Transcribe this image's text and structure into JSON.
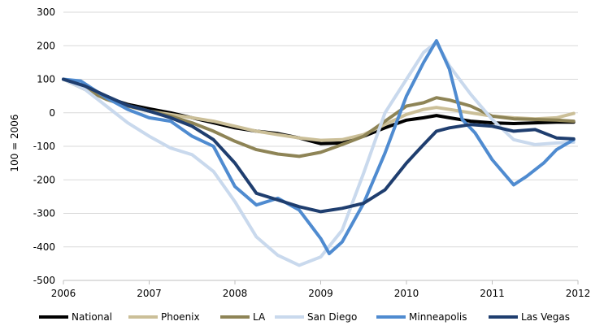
{
  "chart_data": {
    "type": "line",
    "title": "",
    "xlabel": "",
    "ylabel": "100 = 2006",
    "xlim": [
      2006,
      2012
    ],
    "ylim": [
      -500,
      300
    ],
    "x_ticks": [
      "2006",
      "2007",
      "2008",
      "2009",
      "2010",
      "2011",
      "2012"
    ],
    "y_ticks": [
      "300",
      "200",
      "100",
      "0",
      "-100",
      "-200",
      "-300",
      "-400",
      "-500"
    ],
    "grid": "horizontal",
    "legend_position": "bottom",
    "series": [
      {
        "name": "National",
        "color": "#000000",
        "points": [
          [
            2006.0,
            100
          ],
          [
            2006.25,
            75
          ],
          [
            2006.5,
            45
          ],
          [
            2006.75,
            25
          ],
          [
            2007.0,
            12
          ],
          [
            2007.25,
            0
          ],
          [
            2007.5,
            -15
          ],
          [
            2007.75,
            -30
          ],
          [
            2008.0,
            -45
          ],
          [
            2008.25,
            -55
          ],
          [
            2008.5,
            -62
          ],
          [
            2008.75,
            -75
          ],
          [
            2009.0,
            -92
          ],
          [
            2009.25,
            -90
          ],
          [
            2009.5,
            -70
          ],
          [
            2009.75,
            -45
          ],
          [
            2010.0,
            -22
          ],
          [
            2010.2,
            -15
          ],
          [
            2010.35,
            -8
          ],
          [
            2010.5,
            -15
          ],
          [
            2010.75,
            -25
          ],
          [
            2011.0,
            -30
          ],
          [
            2011.25,
            -32
          ],
          [
            2011.5,
            -30
          ],
          [
            2011.75,
            -28
          ],
          [
            2011.95,
            -28
          ]
        ]
      },
      {
        "name": "Phoenix",
        "color": "#cbbf98",
        "points": [
          [
            2006.0,
            100
          ],
          [
            2006.25,
            70
          ],
          [
            2006.5,
            45
          ],
          [
            2006.75,
            22
          ],
          [
            2007.0,
            5
          ],
          [
            2007.25,
            -5
          ],
          [
            2007.5,
            -15
          ],
          [
            2007.75,
            -25
          ],
          [
            2008.0,
            -40
          ],
          [
            2008.25,
            -55
          ],
          [
            2008.5,
            -65
          ],
          [
            2008.75,
            -75
          ],
          [
            2009.0,
            -82
          ],
          [
            2009.25,
            -80
          ],
          [
            2009.5,
            -65
          ],
          [
            2009.75,
            -35
          ],
          [
            2010.0,
            -5
          ],
          [
            2010.2,
            10
          ],
          [
            2010.35,
            16
          ],
          [
            2010.5,
            10
          ],
          [
            2010.75,
            0
          ],
          [
            2011.0,
            -10
          ],
          [
            2011.25,
            -15
          ],
          [
            2011.5,
            -18
          ],
          [
            2011.75,
            -15
          ],
          [
            2011.95,
            -2
          ]
        ]
      },
      {
        "name": "LA",
        "color": "#8e8456",
        "points": [
          [
            2006.0,
            100
          ],
          [
            2006.25,
            70
          ],
          [
            2006.5,
            40
          ],
          [
            2006.75,
            20
          ],
          [
            2007.0,
            5
          ],
          [
            2007.25,
            -10
          ],
          [
            2007.5,
            -30
          ],
          [
            2007.75,
            -55
          ],
          [
            2008.0,
            -85
          ],
          [
            2008.25,
            -110
          ],
          [
            2008.5,
            -123
          ],
          [
            2008.75,
            -130
          ],
          [
            2009.0,
            -118
          ],
          [
            2009.25,
            -95
          ],
          [
            2009.5,
            -70
          ],
          [
            2009.75,
            -25
          ],
          [
            2010.0,
            20
          ],
          [
            2010.2,
            30
          ],
          [
            2010.35,
            45
          ],
          [
            2010.5,
            38
          ],
          [
            2010.75,
            20
          ],
          [
            2011.0,
            -10
          ],
          [
            2011.25,
            -18
          ],
          [
            2011.5,
            -20
          ],
          [
            2011.75,
            -22
          ],
          [
            2011.95,
            -25
          ]
        ]
      },
      {
        "name": "San Diego",
        "color": "#c9d9ed",
        "points": [
          [
            2006.0,
            100
          ],
          [
            2006.25,
            70
          ],
          [
            2006.5,
            20
          ],
          [
            2006.75,
            -30
          ],
          [
            2007.0,
            -70
          ],
          [
            2007.25,
            -105
          ],
          [
            2007.5,
            -125
          ],
          [
            2007.75,
            -175
          ],
          [
            2008.0,
            -265
          ],
          [
            2008.25,
            -370
          ],
          [
            2008.5,
            -425
          ],
          [
            2008.75,
            -455
          ],
          [
            2009.0,
            -430
          ],
          [
            2009.25,
            -350
          ],
          [
            2009.5,
            -180
          ],
          [
            2009.75,
            0
          ],
          [
            2010.0,
            100
          ],
          [
            2010.2,
            180
          ],
          [
            2010.35,
            210
          ],
          [
            2010.5,
            140
          ],
          [
            2010.75,
            55
          ],
          [
            2011.0,
            -20
          ],
          [
            2011.25,
            -80
          ],
          [
            2011.5,
            -95
          ],
          [
            2011.75,
            -90
          ],
          [
            2011.95,
            -88
          ]
        ]
      },
      {
        "name": "Minneapolis",
        "color": "#4f8bd0",
        "points": [
          [
            2006.0,
            100
          ],
          [
            2006.2,
            95
          ],
          [
            2006.5,
            45
          ],
          [
            2006.75,
            10
          ],
          [
            2007.0,
            -15
          ],
          [
            2007.25,
            -25
          ],
          [
            2007.5,
            -70
          ],
          [
            2007.75,
            -100
          ],
          [
            2008.0,
            -220
          ],
          [
            2008.25,
            -275
          ],
          [
            2008.5,
            -255
          ],
          [
            2008.75,
            -290
          ],
          [
            2009.0,
            -375
          ],
          [
            2009.1,
            -420
          ],
          [
            2009.25,
            -385
          ],
          [
            2009.5,
            -270
          ],
          [
            2009.75,
            -120
          ],
          [
            2010.0,
            50
          ],
          [
            2010.2,
            150
          ],
          [
            2010.35,
            215
          ],
          [
            2010.5,
            130
          ],
          [
            2010.65,
            -20
          ],
          [
            2010.8,
            -60
          ],
          [
            2011.0,
            -140
          ],
          [
            2011.25,
            -215
          ],
          [
            2011.4,
            -190
          ],
          [
            2011.6,
            -150
          ],
          [
            2011.75,
            -110
          ],
          [
            2011.95,
            -80
          ]
        ]
      },
      {
        "name": "Las Vegas",
        "color": "#1f3e6f",
        "points": [
          [
            2006.0,
            100
          ],
          [
            2006.25,
            80
          ],
          [
            2006.5,
            50
          ],
          [
            2006.75,
            22
          ],
          [
            2007.0,
            5
          ],
          [
            2007.25,
            -15
          ],
          [
            2007.5,
            -40
          ],
          [
            2007.75,
            -80
          ],
          [
            2008.0,
            -150
          ],
          [
            2008.25,
            -240
          ],
          [
            2008.5,
            -260
          ],
          [
            2008.75,
            -280
          ],
          [
            2009.0,
            -295
          ],
          [
            2009.25,
            -285
          ],
          [
            2009.5,
            -270
          ],
          [
            2009.75,
            -230
          ],
          [
            2010.0,
            -150
          ],
          [
            2010.2,
            -95
          ],
          [
            2010.35,
            -55
          ],
          [
            2010.5,
            -45
          ],
          [
            2010.75,
            -35
          ],
          [
            2011.0,
            -40
          ],
          [
            2011.25,
            -55
          ],
          [
            2011.5,
            -50
          ],
          [
            2011.75,
            -75
          ],
          [
            2011.95,
            -78
          ]
        ]
      }
    ]
  }
}
